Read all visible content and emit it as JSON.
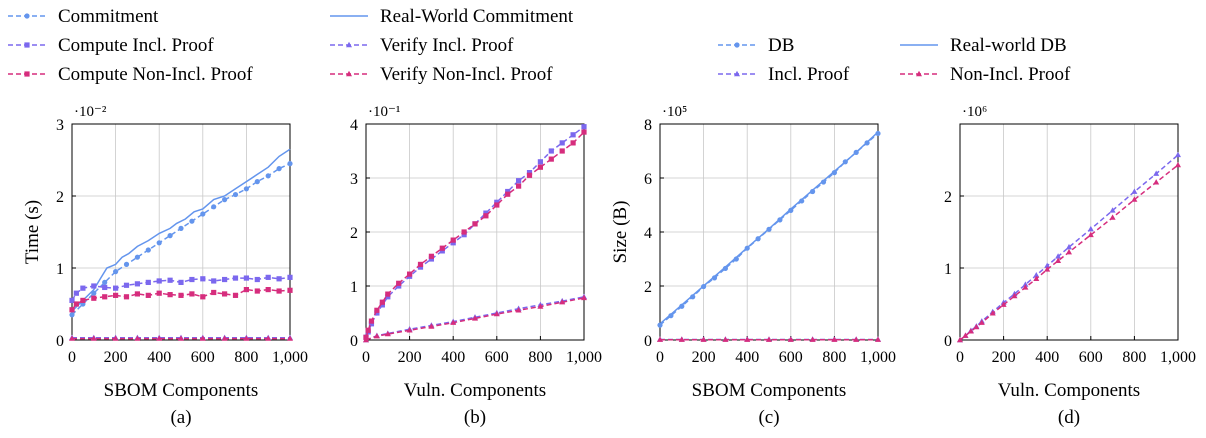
{
  "legends": [
    {
      "entries": [
        {
          "label": "Commitment",
          "style": "dashed-circle",
          "color": "#6495ED"
        },
        {
          "label": "Real-World Commitment",
          "style": "solid",
          "color": "#6495ED"
        },
        {
          "label": "Compute Incl. Proof",
          "style": "dashed-square",
          "color": "#7B68EE"
        },
        {
          "label": "Verify Incl. Proof",
          "style": "dashed-triangle",
          "color": "#7B68EE"
        },
        {
          "label": "Compute Non-Incl. Proof",
          "style": "dashed-square",
          "color": "#D62D7D"
        },
        {
          "label": "Verify Non-Incl. Proof",
          "style": "dashed-triangle",
          "color": "#D62D7D"
        }
      ]
    },
    {
      "entries": [
        {
          "label": "DB",
          "style": "dashed-circle",
          "color": "#6495ED"
        },
        {
          "label": "Real-world DB",
          "style": "solid",
          "color": "#6495ED"
        },
        {
          "label": "Incl. Proof",
          "style": "dashed-triangle",
          "color": "#7B68EE"
        },
        {
          "label": "Non-Incl. Proof",
          "style": "dashed-triangle",
          "color": "#D62D7D"
        }
      ]
    }
  ],
  "chart_data": [
    {
      "type": "line",
      "subcaption": "(a)",
      "xlabel": "SBOM Components",
      "ylabel": "Time (s)",
      "multiplier": "·10⁻²",
      "xlim": [
        0,
        1000
      ],
      "ylim": [
        0,
        3
      ],
      "xticks": [
        "0",
        "200",
        "400",
        "600",
        "800",
        "1,000"
      ],
      "yticks": [
        "0",
        "1",
        "2",
        "3"
      ],
      "grid": true,
      "series": [
        {
          "name": "Commitment",
          "style": "dashed-circle",
          "color": "#6495ED",
          "x": [
            0,
            50,
            100,
            150,
            200,
            250,
            300,
            350,
            400,
            450,
            500,
            550,
            600,
            650,
            700,
            750,
            800,
            850,
            900,
            950,
            1000
          ],
          "y": [
            0.35,
            0.5,
            0.65,
            0.8,
            0.95,
            1.05,
            1.15,
            1.25,
            1.35,
            1.45,
            1.55,
            1.65,
            1.75,
            1.85,
            1.95,
            2.02,
            2.1,
            2.2,
            2.28,
            2.38,
            2.45
          ]
        },
        {
          "name": "Real-World Commitment",
          "style": "solid",
          "color": "#6495ED",
          "x": [
            0,
            50,
            100,
            130,
            160,
            200,
            230,
            260,
            300,
            350,
            400,
            450,
            480,
            520,
            560,
            600,
            650,
            700,
            750,
            800,
            850,
            900,
            950,
            1000
          ],
          "y": [
            0.4,
            0.55,
            0.7,
            0.85,
            1.0,
            1.05,
            1.15,
            1.2,
            1.3,
            1.38,
            1.48,
            1.55,
            1.62,
            1.68,
            1.78,
            1.82,
            1.95,
            2.0,
            2.1,
            2.2,
            2.3,
            2.4,
            2.55,
            2.65
          ]
        },
        {
          "name": "Compute Incl. Proof",
          "style": "dashed-square",
          "color": "#7B68EE",
          "x": [
            0,
            20,
            50,
            100,
            150,
            200,
            250,
            300,
            350,
            400,
            450,
            500,
            550,
            600,
            650,
            700,
            750,
            800,
            850,
            900,
            950,
            1000
          ],
          "y": [
            0.55,
            0.65,
            0.72,
            0.75,
            0.73,
            0.72,
            0.76,
            0.78,
            0.8,
            0.82,
            0.83,
            0.8,
            0.84,
            0.85,
            0.82,
            0.84,
            0.86,
            0.86,
            0.84,
            0.87,
            0.85,
            0.87
          ]
        },
        {
          "name": "Verify Incl. Proof",
          "style": "dashed-triangle",
          "color": "#7B68EE",
          "x": [
            0,
            100,
            200,
            300,
            400,
            500,
            600,
            700,
            800,
            900,
            1000
          ],
          "y": [
            0.03,
            0.03,
            0.03,
            0.03,
            0.03,
            0.03,
            0.03,
            0.03,
            0.03,
            0.03,
            0.03
          ]
        },
        {
          "name": "Compute Non-Incl. Proof",
          "style": "dashed-square",
          "color": "#D62D7D",
          "x": [
            0,
            20,
            50,
            100,
            150,
            200,
            250,
            300,
            350,
            400,
            450,
            500,
            550,
            600,
            650,
            700,
            750,
            800,
            850,
            900,
            950,
            1000
          ],
          "y": [
            0.42,
            0.5,
            0.55,
            0.58,
            0.6,
            0.62,
            0.6,
            0.64,
            0.62,
            0.65,
            0.63,
            0.62,
            0.64,
            0.6,
            0.66,
            0.64,
            0.62,
            0.7,
            0.68,
            0.7,
            0.68,
            0.69
          ]
        },
        {
          "name": "Verify Non-Incl. Proof",
          "style": "dashed-triangle",
          "color": "#D62D7D",
          "x": [
            0,
            100,
            200,
            300,
            400,
            500,
            600,
            700,
            800,
            900,
            1000
          ],
          "y": [
            0.02,
            0.02,
            0.02,
            0.02,
            0.02,
            0.02,
            0.02,
            0.02,
            0.02,
            0.02,
            0.02
          ]
        }
      ]
    },
    {
      "type": "line",
      "subcaption": "(b)",
      "xlabel": "Vuln. Components",
      "ylabel": "",
      "multiplier": "·10⁻¹",
      "xlim": [
        0,
        1000
      ],
      "ylim": [
        0,
        4
      ],
      "xticks": [
        "0",
        "200",
        "400",
        "600",
        "800",
        "1,000"
      ],
      "yticks": [
        "0",
        "1",
        "2",
        "3",
        "4"
      ],
      "grid": true,
      "series": [
        {
          "name": "Compute Incl. Proof",
          "style": "dashed-square",
          "color": "#7B68EE",
          "x": [
            0,
            10,
            25,
            50,
            75,
            100,
            150,
            200,
            250,
            300,
            350,
            400,
            450,
            500,
            550,
            600,
            650,
            700,
            750,
            800,
            850,
            900,
            950,
            1000
          ],
          "y": [
            0.05,
            0.15,
            0.3,
            0.5,
            0.65,
            0.8,
            1.0,
            1.18,
            1.35,
            1.5,
            1.65,
            1.8,
            1.95,
            2.15,
            2.35,
            2.55,
            2.75,
            2.95,
            3.1,
            3.3,
            3.5,
            3.65,
            3.8,
            3.95
          ]
        },
        {
          "name": "Verify Incl. Proof",
          "style": "dashed-triangle",
          "color": "#7B68EE",
          "x": [
            0,
            50,
            100,
            200,
            300,
            400,
            500,
            600,
            700,
            800,
            900,
            1000
          ],
          "y": [
            0.0,
            0.08,
            0.12,
            0.2,
            0.27,
            0.34,
            0.42,
            0.5,
            0.58,
            0.65,
            0.72,
            0.8
          ]
        },
        {
          "name": "Compute Non-Incl. Proof",
          "style": "dashed-square",
          "color": "#D62D7D",
          "x": [
            0,
            10,
            25,
            50,
            75,
            100,
            150,
            200,
            250,
            300,
            350,
            400,
            450,
            500,
            550,
            600,
            650,
            700,
            750,
            800,
            850,
            900,
            950,
            1000
          ],
          "y": [
            0.05,
            0.18,
            0.35,
            0.55,
            0.7,
            0.85,
            1.05,
            1.22,
            1.4,
            1.55,
            1.7,
            1.85,
            2.0,
            2.15,
            2.3,
            2.5,
            2.7,
            2.85,
            3.05,
            3.2,
            3.35,
            3.5,
            3.65,
            3.85
          ]
        },
        {
          "name": "Verify Non-Incl. Proof",
          "style": "dashed-triangle",
          "color": "#D62D7D",
          "x": [
            0,
            50,
            100,
            200,
            300,
            400,
            500,
            600,
            700,
            800,
            900,
            1000
          ],
          "y": [
            0.0,
            0.07,
            0.11,
            0.18,
            0.25,
            0.32,
            0.4,
            0.48,
            0.55,
            0.62,
            0.7,
            0.78
          ]
        }
      ]
    },
    {
      "type": "line",
      "subcaption": "(c)",
      "xlabel": "SBOM Components",
      "ylabel": "Size (B)",
      "multiplier": "·10⁵",
      "xlim": [
        0,
        1000
      ],
      "ylim": [
        0,
        8
      ],
      "xticks": [
        "0",
        "200",
        "400",
        "600",
        "800",
        "1,000"
      ],
      "yticks": [
        "0",
        "2",
        "4",
        "6",
        "8"
      ],
      "grid": true,
      "series": [
        {
          "name": "DB",
          "style": "dashed-circle",
          "color": "#6495ED",
          "x": [
            0,
            50,
            100,
            150,
            200,
            250,
            300,
            350,
            400,
            450,
            500,
            550,
            600,
            650,
            700,
            750,
            800,
            850,
            900,
            950,
            1000
          ],
          "y": [
            0.55,
            0.9,
            1.25,
            1.6,
            1.98,
            2.3,
            2.65,
            3.0,
            3.4,
            3.75,
            4.1,
            4.45,
            4.8,
            5.15,
            5.5,
            5.85,
            6.2,
            6.6,
            6.95,
            7.3,
            7.65
          ]
        },
        {
          "name": "Real-world DB",
          "style": "solid",
          "color": "#6495ED",
          "x": [
            0,
            100,
            200,
            300,
            400,
            500,
            600,
            700,
            800,
            900,
            1000
          ],
          "y": [
            0.6,
            1.3,
            2.0,
            2.7,
            3.42,
            4.12,
            4.85,
            5.55,
            6.25,
            6.95,
            7.7
          ]
        },
        {
          "name": "Incl. Proof",
          "style": "dashed-triangle",
          "color": "#7B68EE",
          "x": [
            0,
            100,
            200,
            300,
            400,
            500,
            600,
            700,
            800,
            900,
            1000
          ],
          "y": [
            0.02,
            0.02,
            0.02,
            0.02,
            0.02,
            0.02,
            0.02,
            0.02,
            0.02,
            0.02,
            0.02
          ]
        },
        {
          "name": "Non-Incl. Proof",
          "style": "dashed-triangle",
          "color": "#D62D7D",
          "x": [
            0,
            100,
            200,
            300,
            400,
            500,
            600,
            700,
            800,
            900,
            1000
          ],
          "y": [
            0.01,
            0.01,
            0.01,
            0.01,
            0.01,
            0.01,
            0.01,
            0.01,
            0.01,
            0.01,
            0.01
          ]
        }
      ]
    },
    {
      "type": "line",
      "subcaption": "(d)",
      "xlabel": "Vuln. Components",
      "ylabel": "",
      "multiplier": "·10⁶",
      "xlim": [
        0,
        1000
      ],
      "ylim": [
        0,
        3
      ],
      "xticks": [
        "0",
        "200",
        "400",
        "600",
        "800",
        "1,000"
      ],
      "yticks": [
        "0",
        "1",
        "2"
      ],
      "grid": true,
      "series": [
        {
          "name": "Incl. Proof",
          "style": "dashed-triangle",
          "color": "#7B68EE",
          "x": [
            0,
            25,
            50,
            75,
            100,
            150,
            200,
            250,
            300,
            350,
            400,
            450,
            500,
            600,
            700,
            800,
            900,
            1000
          ],
          "y": [
            0.0,
            0.06,
            0.13,
            0.19,
            0.26,
            0.39,
            0.52,
            0.64,
            0.77,
            0.9,
            1.03,
            1.16,
            1.29,
            1.54,
            1.8,
            2.06,
            2.31,
            2.57
          ]
        },
        {
          "name": "Non-Incl. Proof",
          "style": "dashed-triangle",
          "color": "#D62D7D",
          "x": [
            0,
            25,
            50,
            75,
            100,
            150,
            200,
            250,
            300,
            350,
            400,
            450,
            500,
            600,
            700,
            800,
            900,
            1000
          ],
          "y": [
            0.0,
            0.06,
            0.12,
            0.18,
            0.24,
            0.37,
            0.49,
            0.61,
            0.73,
            0.85,
            0.98,
            1.1,
            1.22,
            1.46,
            1.7,
            1.95,
            2.19,
            2.43
          ]
        }
      ]
    }
  ]
}
